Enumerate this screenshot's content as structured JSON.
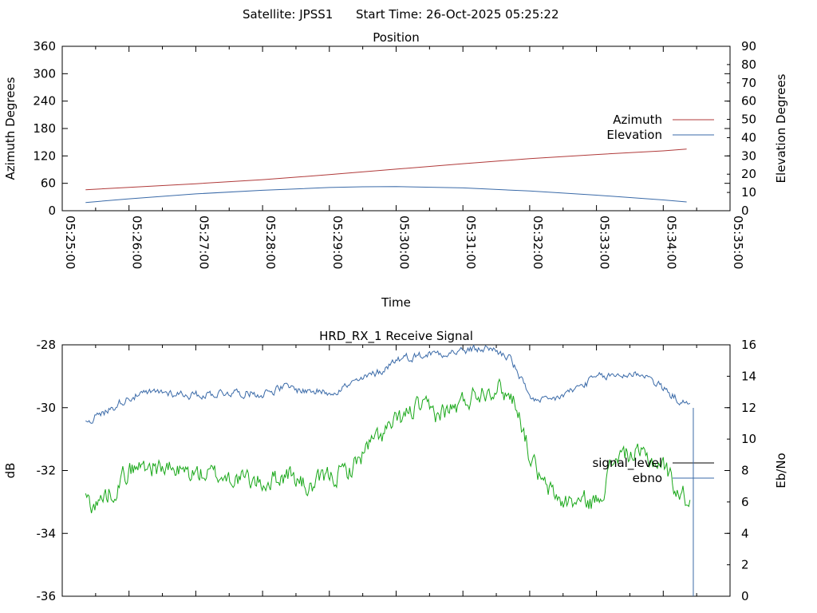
{
  "header": {
    "satellite": "Satellite: JPSS1",
    "start_time": "Start Time: 26-Oct-2025 05:25:22"
  },
  "colors": {
    "azimuth": "#b03a3a",
    "elevation": "#3a6aa8",
    "signal_level": "#1aa81a",
    "ebno": "#3a6aa8",
    "axis": "#000000"
  },
  "chart_data": [
    {
      "type": "line",
      "title": "Position",
      "xlabel": "Time",
      "ylabel": "Azimuth Degrees",
      "y2label": "Elevation Degrees",
      "ylim": [
        0,
        360
      ],
      "y2lim": [
        0,
        90
      ],
      "xlim_minutes": [
        0,
        10
      ],
      "yticks": [
        "0",
        "60",
        "120",
        "180",
        "240",
        "300",
        "360"
      ],
      "y2ticks": [
        "0",
        "10",
        "20",
        "30",
        "40",
        "50",
        "60",
        "70",
        "80",
        "90"
      ],
      "xticks": [
        "05:25:00",
        "05:26:00",
        "05:27:00",
        "05:28:00",
        "05:29:00",
        "05:30:00",
        "05:31:00",
        "05:32:00",
        "05:33:00",
        "05:34:00",
        "05:35:00"
      ],
      "legend": [
        "Azimuth",
        "Elevation"
      ],
      "legend_position": "right",
      "series": [
        {
          "name": "Azimuth",
          "axis": "y1",
          "x_minutes": [
            0.35,
            1.0,
            2.0,
            3.0,
            4.0,
            5.0,
            6.0,
            7.0,
            8.0,
            9.0,
            9.35
          ],
          "values": [
            46,
            51,
            59,
            68,
            79,
            91,
            103,
            114,
            123,
            131,
            135
          ]
        },
        {
          "name": "Elevation",
          "axis": "y2",
          "x_minutes": [
            0.35,
            1.0,
            2.0,
            3.0,
            4.0,
            4.5,
            5.0,
            6.0,
            7.0,
            8.0,
            9.0,
            9.35
          ],
          "values": [
            4.5,
            6.5,
            9.2,
            11.2,
            12.7,
            13.1,
            13.2,
            12.5,
            10.8,
            8.5,
            5.9,
            4.8
          ]
        }
      ]
    },
    {
      "type": "line",
      "title": "HRD_RX_1 Receive Signal",
      "xlabel": "",
      "ylabel": "dB",
      "y2label": "Eb/No",
      "ylim": [
        -36,
        -28
      ],
      "y2lim": [
        0,
        16
      ],
      "xlim_minutes": [
        0,
        10
      ],
      "yticks": [
        "-36",
        "-34",
        "-32",
        "-30",
        "-28"
      ],
      "y2ticks": [
        "0",
        "2",
        "4",
        "6",
        "8",
        "10",
        "12",
        "14",
        "16"
      ],
      "legend": [
        "signal_level",
        "ebno"
      ],
      "legend_position": "right",
      "series": [
        {
          "name": "signal_level",
          "axis": "y1",
          "x_minutes": [
            0.35,
            0.5,
            0.8,
            1.0,
            1.3,
            1.6,
            2.0,
            2.5,
            3.0,
            3.4,
            3.7,
            4.0,
            4.3,
            4.6,
            5.0,
            5.3,
            5.6,
            5.9,
            6.2,
            6.5,
            6.8,
            7.0,
            7.2,
            7.5,
            8.0,
            8.3,
            8.6,
            9.0,
            9.2,
            9.4
          ],
          "values": [
            -32.9,
            -33.1,
            -32.5,
            -32.0,
            -31.8,
            -32.0,
            -32.1,
            -32.2,
            -32.4,
            -32.1,
            -32.6,
            -32.2,
            -32.0,
            -31.2,
            -30.5,
            -30.0,
            -30.2,
            -30.0,
            -29.5,
            -29.3,
            -29.8,
            -31.5,
            -32.5,
            -33.0,
            -33.0,
            -31.5,
            -31.5,
            -31.8,
            -32.6,
            -33.0
          ]
        },
        {
          "name": "ebno",
          "axis": "y2",
          "x_minutes": [
            0.35,
            0.6,
            1.0,
            1.5,
            2.0,
            2.5,
            3.0,
            3.3,
            3.6,
            4.0,
            4.4,
            4.8,
            5.0,
            5.3,
            5.6,
            6.0,
            6.4,
            6.7,
            6.9,
            7.1,
            7.3,
            7.6,
            8.0,
            8.4,
            8.7,
            9.0,
            9.2,
            9.4
          ],
          "values": [
            11.2,
            11.6,
            12.7,
            13.0,
            12.8,
            13.0,
            12.9,
            13.3,
            13.1,
            13.0,
            13.6,
            14.4,
            15.1,
            15.3,
            15.5,
            15.6,
            15.8,
            15.2,
            13.5,
            12.3,
            12.4,
            13.0,
            13.9,
            14.1,
            14.2,
            13.2,
            12.6,
            12.0
          ]
        }
      ]
    }
  ]
}
